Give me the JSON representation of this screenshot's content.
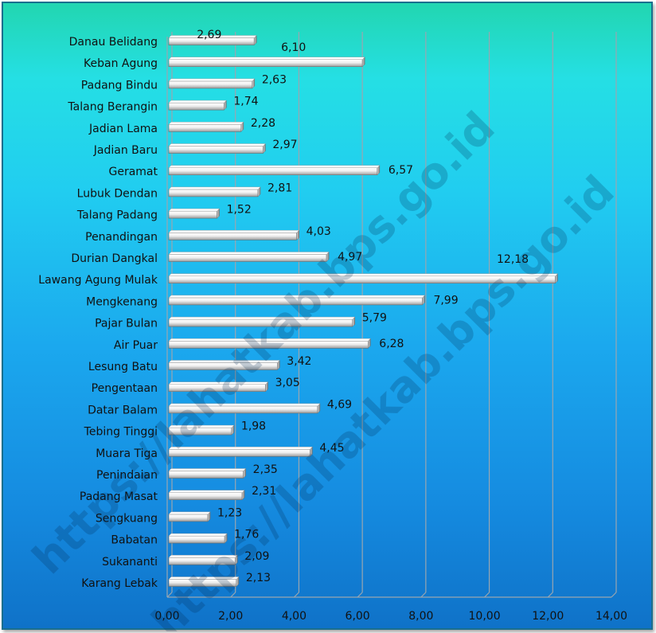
{
  "chart_data": {
    "type": "bar",
    "orientation": "horizontal",
    "categories": [
      "Danau Belidang",
      "Keban Agung",
      "Padang Bindu",
      "Talang Berangin",
      "Jadian Lama",
      "Jadian Baru",
      "Geramat",
      "Lubuk Dendan",
      "Talang Padang",
      "Penandingan",
      "Durian Dangkal",
      "Lawang Agung Mulak",
      "Mengkenang",
      "Pajar Bulan",
      "Air Puar",
      "Lesung Batu",
      "Pengentaan",
      "Datar Balam",
      "Tebing Tinggi",
      "Muara Tiga",
      "Penindaian",
      "Padang Masat",
      "Sengkuang",
      "Babatan",
      "Sukananti",
      "Karang Lebak"
    ],
    "values": [
      2.69,
      6.1,
      2.63,
      1.74,
      2.28,
      2.97,
      6.57,
      2.81,
      1.52,
      4.03,
      4.97,
      12.18,
      7.99,
      5.79,
      6.28,
      3.42,
      3.05,
      4.69,
      1.98,
      4.45,
      2.35,
      2.31,
      1.23,
      1.76,
      2.09,
      2.13
    ],
    "value_labels": [
      "2,69",
      "6,10",
      "2,63",
      "1,74",
      "2,28",
      "2,97",
      "6,57",
      "2,81",
      "1,52",
      "4,03",
      "4,97",
      "12,18",
      "7,99",
      "5,79",
      "6,28",
      "3,42",
      "3,05",
      "4,69",
      "1,98",
      "4,45",
      "2,35",
      "2,31",
      "1,23",
      "1,76",
      "2,09",
      "2,13"
    ],
    "xlim": [
      0,
      14
    ],
    "x_ticks": [
      "0,00",
      "2,00",
      "4,00",
      "6,00",
      "8,00",
      "10,00",
      "12,00",
      "14,00"
    ],
    "grid": true,
    "title": "",
    "xlabel": "",
    "ylabel": ""
  },
  "watermark": "https://lahatkab.bps.go.id",
  "colors": {
    "bar_fill": "#f4f4f4",
    "bar_shadow": "#8a8a8a",
    "gridline": "#9aa6b0",
    "text": "#111111"
  }
}
